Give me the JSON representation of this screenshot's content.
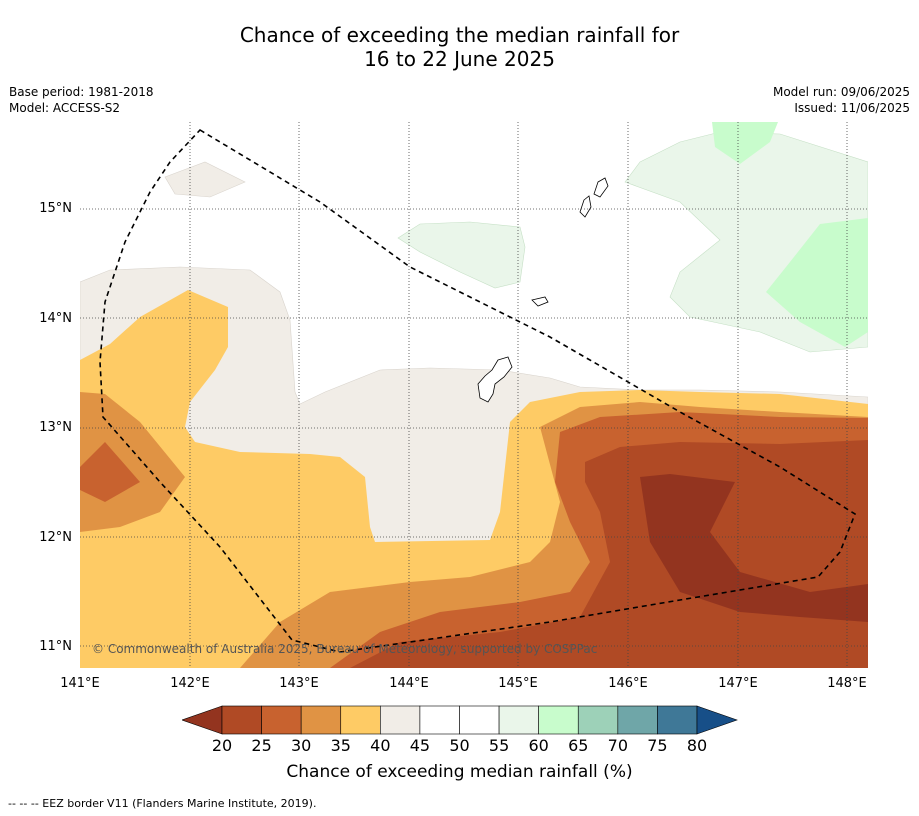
{
  "header": {
    "title_line1": "Chance of exceeding the median rainfall for",
    "title_line2": "16 to 22 June 2025",
    "base_period": "Base period: 1981-2018",
    "model": "Model: ACCESS-S2",
    "model_run": "Model run: 09/06/2025",
    "issued": "Issued: 11/06/2025"
  },
  "map": {
    "lat_labels": [
      "15°N",
      "14°N",
      "13°N",
      "12°N",
      "11°N"
    ],
    "lon_labels": [
      "141°E",
      "142°E",
      "143°E",
      "144°E",
      "145°E",
      "146°E",
      "147°E",
      "148°E"
    ],
    "copyright": "© Commonwealth of Australia 2025, Bureau of Meteorology, supported by COSPPac"
  },
  "colorbar": {
    "ticks": [
      "20",
      "25",
      "30",
      "35",
      "40",
      "45",
      "50",
      "55",
      "60",
      "65",
      "70",
      "75",
      "80"
    ],
    "colors": [
      "#b04a25",
      "#c8622f",
      "#e09344",
      "#fecb65",
      "#f1ede7",
      "#ffffff",
      "#ffffff",
      "#eaf6ea",
      "#c8fccc",
      "#9dd1b8",
      "#6fa6a8",
      "#3f7897"
    ],
    "under_color": "#93341f",
    "over_color": "#174f88",
    "title": "Chance of exceeding median rainfall (%)"
  },
  "footer": {
    "legend_text": "--  --  -- EEZ border V11 (Flanders Marine Institute, 2019)."
  }
}
